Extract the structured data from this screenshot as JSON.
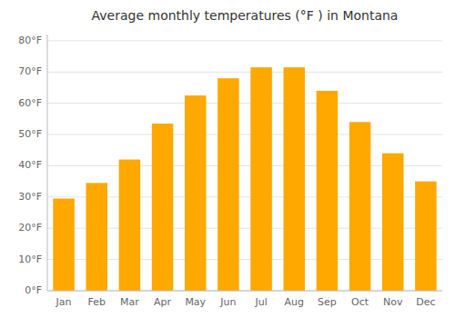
{
  "chart_data": {
    "type": "bar",
    "title": "Average monthly temperatures (°F ) in Montana",
    "categories": [
      "Jan",
      "Feb",
      "Mar",
      "Apr",
      "May",
      "Jun",
      "Jul",
      "Aug",
      "Sep",
      "Oct",
      "Nov",
      "Dec"
    ],
    "values": [
      29.5,
      34.5,
      42.0,
      53.5,
      62.5,
      68.0,
      71.5,
      71.5,
      64.0,
      54.0,
      44.0,
      35.0
    ],
    "color": "#FFA800",
    "ylim": [
      0,
      82
    ],
    "yticks": [
      {
        "value": 0,
        "label": "0°F"
      },
      {
        "value": 10,
        "label": "10°F"
      },
      {
        "value": 20,
        "label": "20°F"
      },
      {
        "value": 30,
        "label": "30°F"
      },
      {
        "value": 40,
        "label": "40°F"
      },
      {
        "value": 50,
        "label": "50°F"
      },
      {
        "value": 60,
        "label": "60°F"
      },
      {
        "value": 70,
        "label": "70°F"
      },
      {
        "value": 80,
        "label": "80°F"
      }
    ],
    "grid": true
  }
}
